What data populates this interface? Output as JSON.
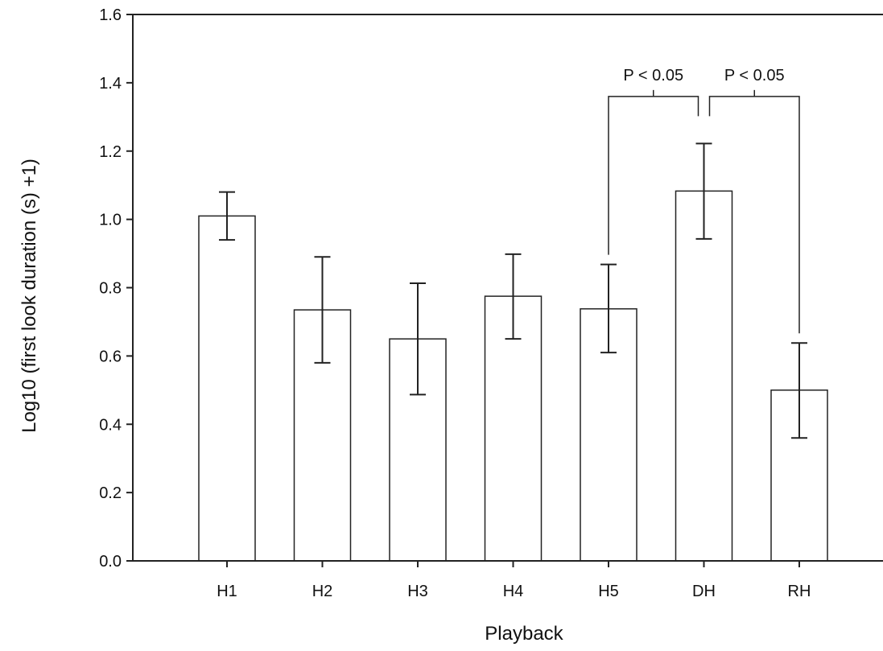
{
  "chart_data": {
    "type": "bar",
    "categories": [
      "H1",
      "H2",
      "H3",
      "H4",
      "H5",
      "DH",
      "RH"
    ],
    "values": [
      1.01,
      0.735,
      0.65,
      0.775,
      0.738,
      1.083,
      0.5
    ],
    "error_lower": [
      0.94,
      0.58,
      0.487,
      0.65,
      0.61,
      0.943,
      0.36
    ],
    "error_upper": [
      1.08,
      0.89,
      0.813,
      0.898,
      0.868,
      1.222,
      0.638
    ],
    "xlabel": "Playback",
    "ylabel": "Log10 (first look duration (s) +1)",
    "ylim": [
      0.0,
      1.6
    ],
    "yticks": [
      "0.0",
      "0.2",
      "0.4",
      "0.6",
      "0.8",
      "1.0",
      "1.2",
      "1.4",
      "1.6"
    ],
    "grid": false,
    "bar_fill": "#ffffff",
    "bar_stroke": "#222222",
    "annotations": [
      {
        "text": "P < 0.05",
        "from": "H5",
        "to": "DH",
        "bracket_y": 1.36
      },
      {
        "text": "P < 0.05",
        "from": "DH",
        "to": "RH",
        "bracket_y": 1.36
      }
    ]
  }
}
